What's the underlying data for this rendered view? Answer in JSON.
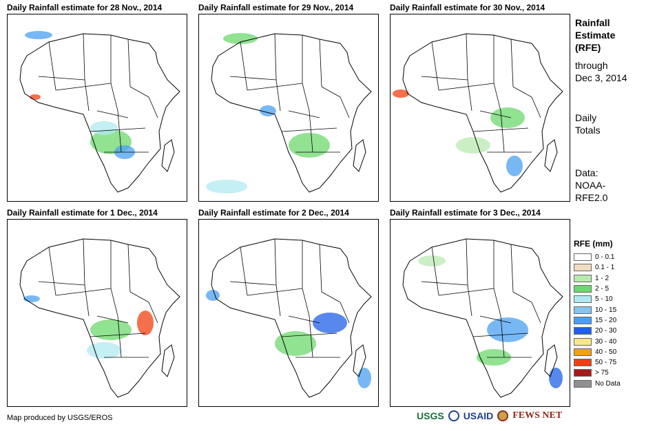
{
  "panels": [
    {
      "title": "Daily Rainfall estimate for 28 Nov., 2014"
    },
    {
      "title": "Daily Rainfall estimate for 29 Nov., 2014"
    },
    {
      "title": "Daily Rainfall estimate for 30 Nov., 2014"
    },
    {
      "title": "Daily Rainfall estimate for 1 Dec., 2014"
    },
    {
      "title": "Daily Rainfall estimate for 2 Dec., 2014"
    },
    {
      "title": "Daily Rainfall estimate for 3 Dec., 2014"
    }
  ],
  "side": {
    "title_lines": [
      "Rainfall",
      "Estimate",
      "(RFE)"
    ],
    "through_lines": [
      "through",
      "Dec 3, 2014"
    ],
    "totals_lines": [
      "Daily",
      "Totals"
    ],
    "data_lines": [
      "Data:",
      "NOAA-",
      "RFE2.0"
    ]
  },
  "legend": {
    "title": "RFE (mm)",
    "items": [
      {
        "label": "0 - 0.1",
        "color": "#ffffff"
      },
      {
        "label": "0.1 - 1",
        "color": "#f0dcc0"
      },
      {
        "label": "1 - 2",
        "color": "#b8eab0"
      },
      {
        "label": "2 - 5",
        "color": "#6cd86c"
      },
      {
        "label": "5 - 10",
        "color": "#b0eaf0"
      },
      {
        "label": "10 - 15",
        "color": "#88c4f0"
      },
      {
        "label": "15 - 20",
        "color": "#4aa0f0"
      },
      {
        "label": "20 - 30",
        "color": "#1f60e8"
      },
      {
        "label": "30 - 40",
        "color": "#f8e888"
      },
      {
        "label": "40 - 50",
        "color": "#f4a010"
      },
      {
        "label": "50 - 75",
        "color": "#f04010"
      },
      {
        "label": "> 75",
        "color": "#a81a1a"
      },
      {
        "label": "No Data",
        "color": "#909090"
      }
    ]
  },
  "credit": "Map produced by USGS/EROS",
  "logos": {
    "usgs": "USGS",
    "usaid": "USAID",
    "fews": "FEWS NET"
  }
}
